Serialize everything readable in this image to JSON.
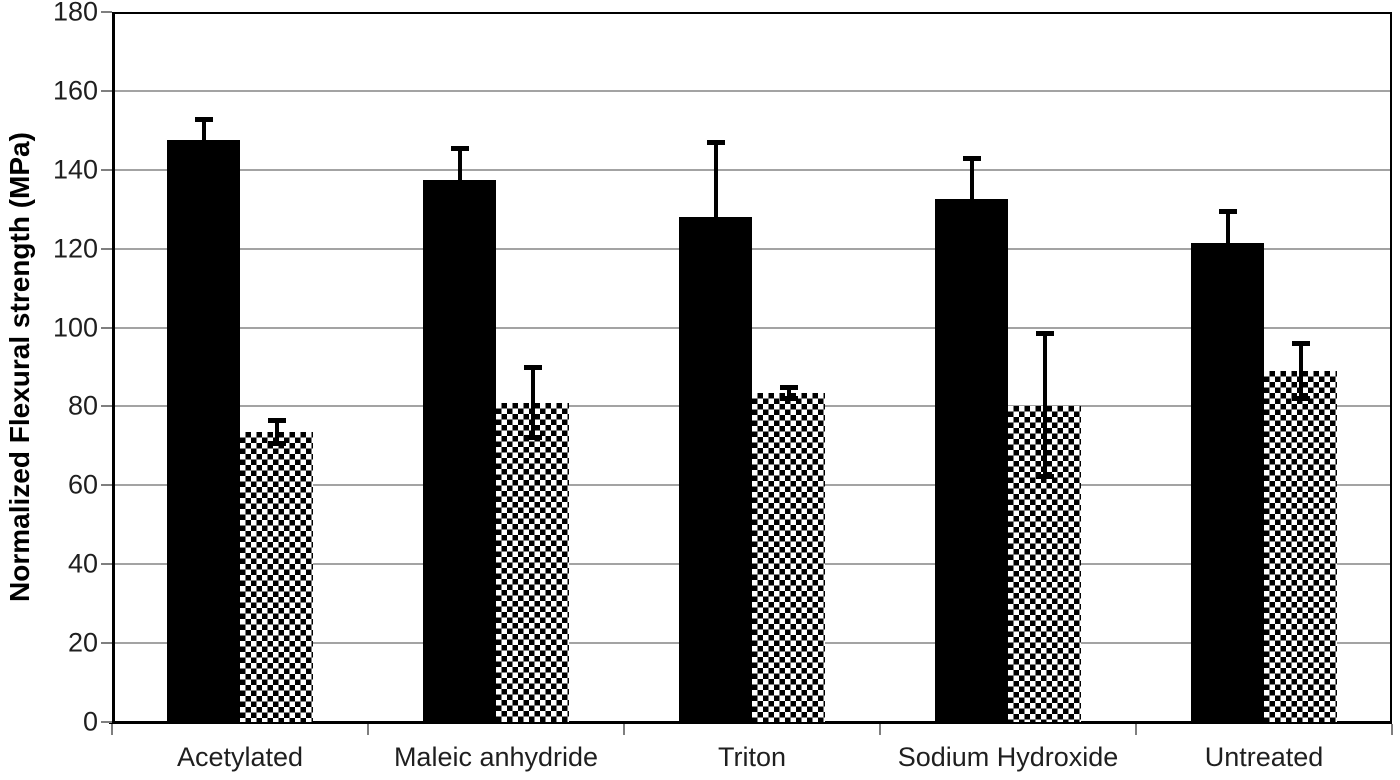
{
  "figure": {
    "background": "#ffffff",
    "frame_color": "#000000",
    "gridline_color": "#a3a3a3",
    "tick_color": "#7f7f7f",
    "text_color": "#1f1f1f",
    "bar_color": "#000000"
  },
  "chart_data": {
    "type": "bar",
    "title": "",
    "xlabel": "",
    "ylabel": "Normalized Flexural strength (MPa)",
    "ylim": [
      0,
      180
    ],
    "y_ticks": [
      0,
      20,
      40,
      60,
      80,
      100,
      120,
      140,
      160,
      180
    ],
    "grid": true,
    "legend_position": "none",
    "value_unit": "MPa",
    "categories": [
      "Acetylated",
      "Maleic anhydride",
      "Triton",
      "Sodium Hydroxide",
      "Untreated"
    ],
    "series": [
      {
        "name": "solid-black-bars",
        "fill": "solid",
        "values": [
          147.5,
          137.5,
          128,
          132.5,
          121.5
        ],
        "error_up": [
          5.5,
          8,
          19,
          10.5,
          8
        ],
        "error_down": [
          5.5,
          8,
          19,
          10.5,
          8
        ],
        "error_caps_visible": "upper-only"
      },
      {
        "name": "checkered-bars",
        "fill": "checkerboard",
        "values": [
          73.5,
          81,
          83.5,
          80,
          89
        ],
        "error_up": [
          3,
          9,
          1.5,
          18.5,
          7
        ],
        "error_down": [
          3,
          9,
          1.5,
          18,
          7
        ],
        "error_caps_visible": "both"
      }
    ]
  }
}
